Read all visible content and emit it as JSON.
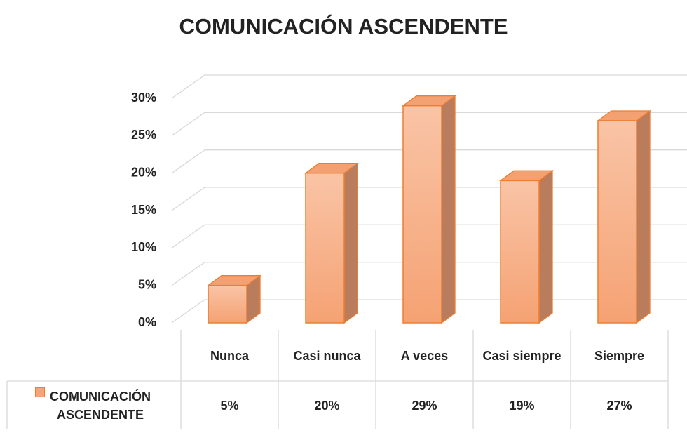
{
  "chart_data": {
    "type": "bar3d",
    "title": "COMUNICACIÓN ASCENDENTE",
    "categories": [
      "Nunca",
      "Casi nunca",
      "A veces",
      "Casi siempre",
      "Siempre"
    ],
    "series": [
      {
        "name": "COMUNICACIÓN ASCENDENTE",
        "color": "#f4a57a",
        "values": [
          5,
          20,
          29,
          19,
          27
        ],
        "value_labels": [
          "5%",
          "20%",
          "29%",
          "19%",
          "27%"
        ]
      }
    ],
    "ylim": [
      0,
      30
    ],
    "yticks": [
      {
        "value": 0,
        "label": "0%"
      },
      {
        "value": 5,
        "label": "5%"
      },
      {
        "value": 10,
        "label": "10%"
      },
      {
        "value": 15,
        "label": "15%"
      },
      {
        "value": 20,
        "label": "20%"
      },
      {
        "value": 25,
        "label": "25%"
      },
      {
        "value": 30,
        "label": "30%"
      }
    ],
    "grid": true,
    "data_table": true
  }
}
